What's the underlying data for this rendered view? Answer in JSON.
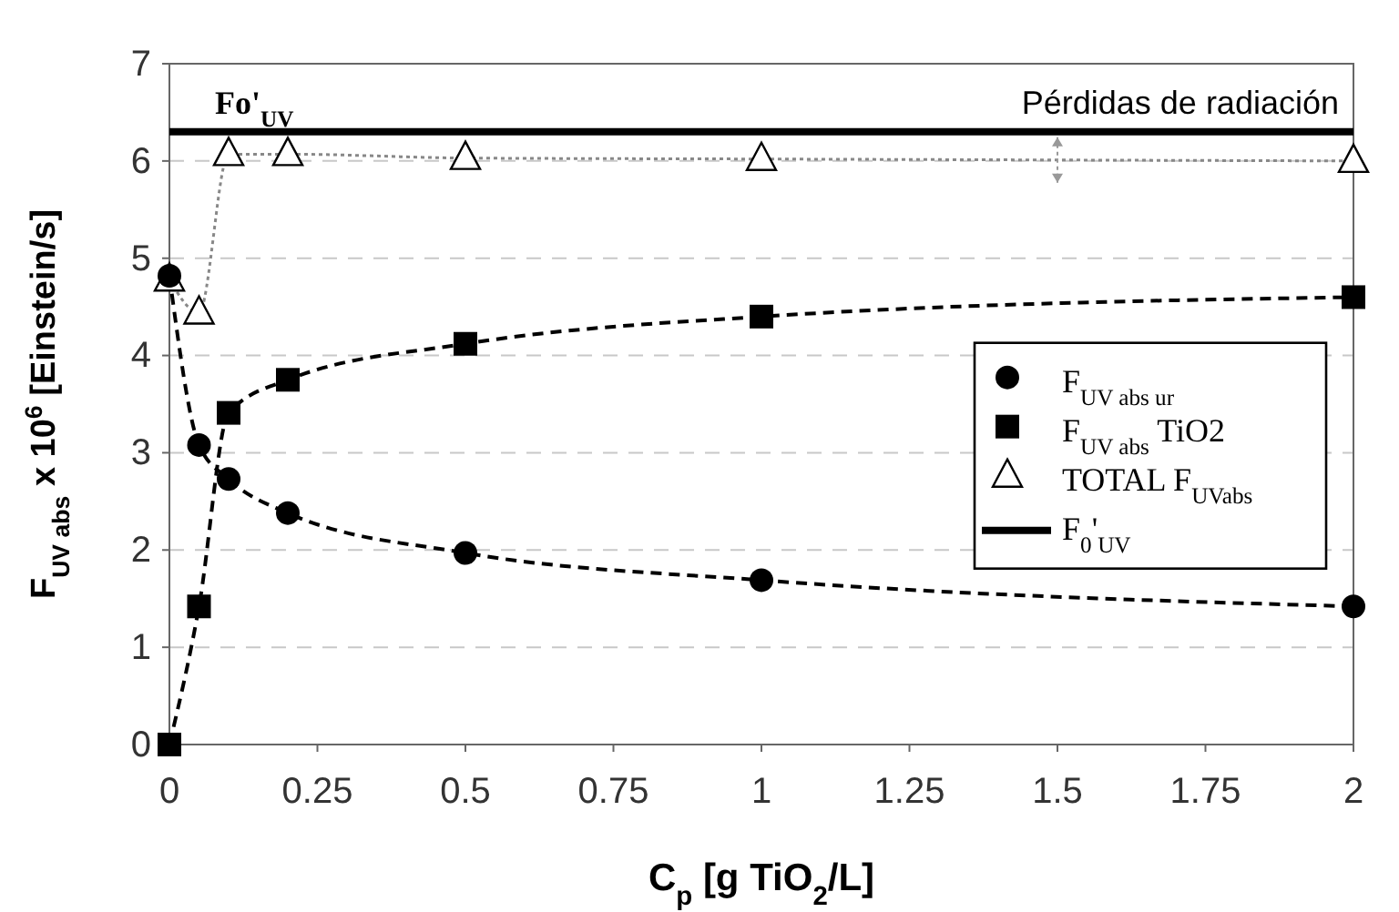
{
  "chart_data": {
    "type": "line",
    "xlabel": "C$_{p}$ [g TiO$_{2}$/L]",
    "ylabel": "F$_{UV abs}$ x 10$^{6}$  [Einstein/s]",
    "x": [
      0,
      0.05,
      0.1,
      0.2,
      0.5,
      1,
      2
    ],
    "series": [
      {
        "name": "F$_{UV abs ur}$",
        "color": "#000000",
        "marker": "circle",
        "line_style": "dashed",
        "values": [
          4.82,
          3.08,
          2.73,
          2.38,
          1.97,
          1.69,
          1.42
        ]
      },
      {
        "name": "F$_{UV abs}$ TiO2",
        "color": "#000000",
        "marker": "square",
        "line_style": "dashed",
        "values": [
          0,
          1.42,
          3.41,
          3.75,
          4.12,
          4.4,
          4.6
        ]
      },
      {
        "name": "TOTAL F$_{UVabs}$",
        "color": "#888888",
        "marker": "triangle",
        "line_style": "dotted",
        "values": [
          4.78,
          4.44,
          6.07,
          6.07,
          6.03,
          6.02,
          6.0
        ]
      },
      {
        "name": "F$_{0}$'$_{UV}$",
        "color": "#000000",
        "marker": "none",
        "line_style": "solid",
        "x": [
          0,
          2
        ],
        "values": [
          6.3,
          6.3
        ]
      }
    ],
    "annotations": [
      {
        "text": "Fo'$_{UV}$",
        "x": 0.2,
        "y": 6.3
      },
      {
        "text": "Pérdidas de radiación",
        "x": 1.5,
        "y": 6.3
      }
    ],
    "xlim": [
      0,
      2
    ],
    "xticks": [
      0,
      0.25,
      0.5,
      0.75,
      1,
      1.25,
      1.5,
      1.75,
      2
    ],
    "ylim": [
      0,
      7
    ],
    "yticks": [
      0,
      1,
      2,
      3,
      4,
      5,
      6,
      7
    ],
    "grid": "y",
    "legend": "right"
  }
}
